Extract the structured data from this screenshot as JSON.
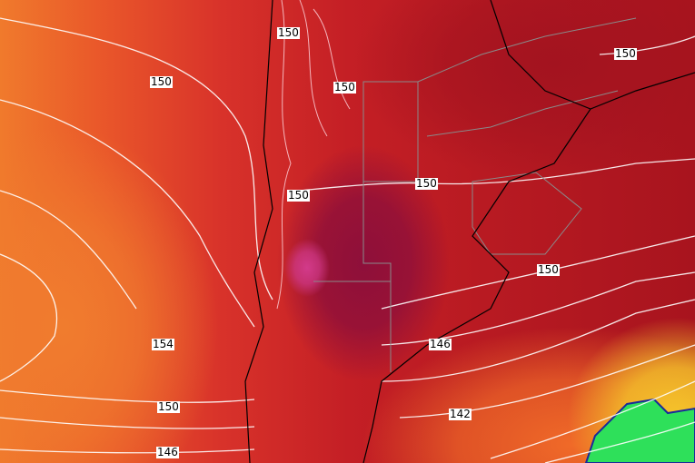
{
  "map": {
    "colors": {
      "deep_core": "#8e0f3a",
      "magenta_core": "#d23a8a",
      "dark_red": "#a8141e",
      "red": "#d8322a",
      "orange": "#ef6a2a",
      "yellow": "#f5d02a",
      "green": "#2ee05a",
      "contour": "#ffffff",
      "border": "#8a8a8a",
      "coast": "#000000"
    },
    "contour_labels": [
      "150",
      "150",
      "150",
      "150",
      "150",
      "150",
      "150",
      "154",
      "146",
      "150",
      "142",
      "146"
    ]
  }
}
